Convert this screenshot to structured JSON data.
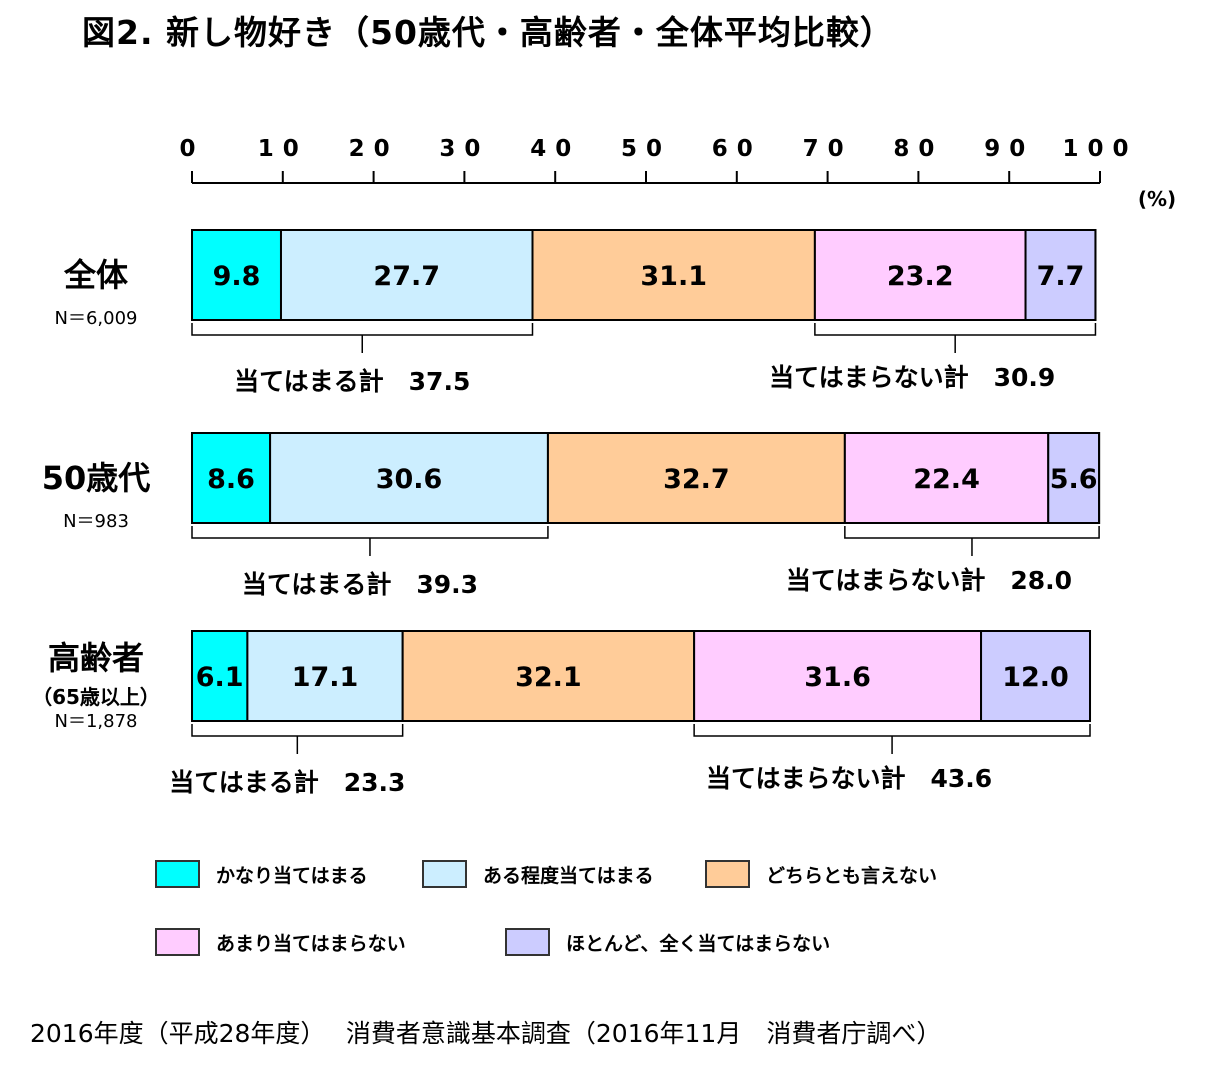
{
  "title": "図2.  新し物好き（50歳代・高齢者・全体平均比較）",
  "unit_label": "(%)",
  "source_note": "2016年度（平成28年度）　 消費者意識基本調査（2016年11月　消費者庁調べ）",
  "chart_data": {
    "type": "bar",
    "orientation": "horizontal-stacked-100",
    "xlim": [
      0,
      100
    ],
    "x_ticks": [
      "0",
      "10",
      "20",
      "30",
      "40",
      "50",
      "60",
      "70",
      "80",
      "90",
      "100"
    ],
    "categories": [
      {
        "label": "全体",
        "sublabel": "",
        "n": "N＝6,009"
      },
      {
        "label": "50歳代",
        "sublabel": "",
        "n": "N＝983"
      },
      {
        "label": "高齢者",
        "sublabel": "（65歳以上）",
        "n": "N＝1,878"
      }
    ],
    "series": [
      {
        "name": "かなり当てはまる",
        "color": "#00ffff",
        "values": [
          9.8,
          8.6,
          6.1
        ]
      },
      {
        "name": "ある程度当てはまる",
        "color": "#cceeff",
        "values": [
          27.7,
          30.6,
          17.1
        ]
      },
      {
        "name": "どちらとも言えない",
        "color": "#ffcc99",
        "values": [
          31.1,
          32.7,
          32.1
        ]
      },
      {
        "name": "あまり当てはまらない",
        "color": "#ffccff",
        "values": [
          23.2,
          22.4,
          31.6
        ]
      },
      {
        "name": "ほとんど、全く当てはまらない",
        "color": "#ccccff",
        "values": [
          7.7,
          5.6,
          12.0
        ]
      }
    ],
    "value_labels": [
      [
        "9.8",
        "27.7",
        "31.1",
        "23.2",
        "7.7"
      ],
      [
        "8.6",
        "30.6",
        "32.7",
        "22.4",
        "5.6"
      ],
      [
        "6.1",
        "17.1",
        "32.1",
        "31.6",
        "12.0"
      ]
    ],
    "totals": [
      {
        "agree": "当てはまる計　37.5",
        "disagree": "当てはまらない計　30.9"
      },
      {
        "agree": "当てはまる計　39.3",
        "disagree": "当てはまらない計　28.0"
      },
      {
        "agree": "当てはまる計　23.3",
        "disagree": "当てはまらない計　43.6"
      }
    ],
    "legend_position": "bottom"
  }
}
